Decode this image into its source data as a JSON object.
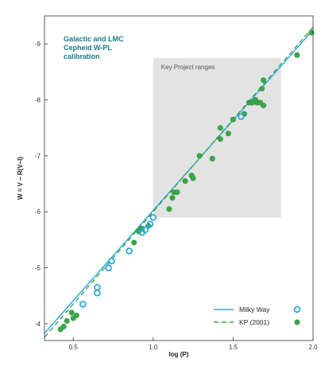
{
  "chart_data": {
    "type": "scatter",
    "title_lines": [
      "Galactic and LMC",
      "Cepheid W-PL",
      "calibration"
    ],
    "xlabel": "log (P)",
    "ylabel": "W = V – R(V–I)",
    "xlim": [
      0.32,
      2.0
    ],
    "ylim": [
      -3.7,
      -9.5
    ],
    "x_ticks": [
      0.5,
      1.0,
      1.5,
      2.0
    ],
    "x_tick_labels": [
      "0.5",
      "1.0",
      "1.5",
      "2.0"
    ],
    "y_ticks": [
      -4,
      -5,
      -6,
      -7,
      -8,
      -9
    ],
    "y_tick_labels": [
      "-4",
      "-5",
      "-6",
      "-7",
      "-8",
      "-9"
    ],
    "shaded_region": {
      "label": "Key Project ranges",
      "x": [
        1.0,
        1.8
      ],
      "y": [
        -5.9,
        -8.75
      ],
      "color": "#e3e3e3"
    },
    "series": [
      {
        "name": "Milky Way",
        "kind": "open-circle",
        "color": "#29a8e0",
        "fit_line": {
          "x": [
            0.32,
            2.0
          ],
          "y": [
            -3.83,
            -9.25
          ],
          "style": "solid"
        },
        "points": [
          {
            "x": 0.56,
            "y": -4.35
          },
          {
            "x": 0.65,
            "y": -4.55
          },
          {
            "x": 0.65,
            "y": -4.65
          },
          {
            "x": 0.72,
            "y": -5.0
          },
          {
            "x": 0.74,
            "y": -5.12
          },
          {
            "x": 0.85,
            "y": -5.3
          },
          {
            "x": 0.93,
            "y": -5.63
          },
          {
            "x": 0.95,
            "y": -5.68
          },
          {
            "x": 0.98,
            "y": -5.78
          },
          {
            "x": 1.0,
            "y": -5.9
          },
          {
            "x": 1.55,
            "y": -7.7
          }
        ]
      },
      {
        "name": "KP (2001)",
        "kind": "filled-circle",
        "color": "#3aa84a",
        "fit_line": {
          "x": [
            0.32,
            2.0
          ],
          "y": [
            -3.76,
            -9.3
          ],
          "style": "dashed"
        },
        "points": [
          {
            "x": 0.42,
            "y": -3.9
          },
          {
            "x": 0.44,
            "y": -3.95
          },
          {
            "x": 0.46,
            "y": -4.05
          },
          {
            "x": 0.49,
            "y": -4.2
          },
          {
            "x": 0.5,
            "y": -4.1
          },
          {
            "x": 0.52,
            "y": -4.15
          },
          {
            "x": 0.88,
            "y": -5.45
          },
          {
            "x": 0.91,
            "y": -5.65
          },
          {
            "x": 0.93,
            "y": -5.7
          },
          {
            "x": 0.97,
            "y": -5.75
          },
          {
            "x": 1.1,
            "y": -6.05
          },
          {
            "x": 1.12,
            "y": -6.25
          },
          {
            "x": 1.13,
            "y": -6.35
          },
          {
            "x": 1.15,
            "y": -6.35
          },
          {
            "x": 1.2,
            "y": -6.55
          },
          {
            "x": 1.24,
            "y": -6.65
          },
          {
            "x": 1.25,
            "y": -6.6
          },
          {
            "x": 1.29,
            "y": -7.0
          },
          {
            "x": 1.37,
            "y": -6.95
          },
          {
            "x": 1.42,
            "y": -7.3
          },
          {
            "x": 1.42,
            "y": -7.5
          },
          {
            "x": 1.47,
            "y": -7.4
          },
          {
            "x": 1.5,
            "y": -7.65
          },
          {
            "x": 1.57,
            "y": -7.75
          },
          {
            "x": 1.6,
            "y": -7.95
          },
          {
            "x": 1.62,
            "y": -7.95
          },
          {
            "x": 1.64,
            "y": -8.0
          },
          {
            "x": 1.65,
            "y": -7.95
          },
          {
            "x": 1.67,
            "y": -7.95
          },
          {
            "x": 1.69,
            "y": -7.9
          },
          {
            "x": 1.68,
            "y": -8.2
          },
          {
            "x": 1.69,
            "y": -8.35
          },
          {
            "x": 1.9,
            "y": -8.8
          },
          {
            "x": 1.99,
            "y": -9.2
          }
        ]
      }
    ],
    "legend": {
      "placement": "bottom-right",
      "entries": [
        "Milky Way",
        "KP (2001)"
      ]
    },
    "grid": false
  },
  "colors": {
    "title": "#1a7a8a",
    "axis": "#333333",
    "milky_way": "#29a8e0",
    "kp": "#3aa84a"
  }
}
